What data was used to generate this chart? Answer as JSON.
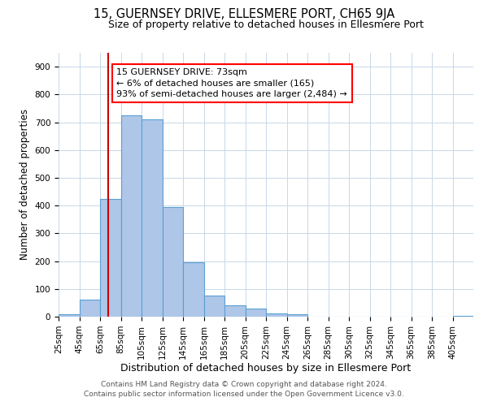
{
  "title": "15, GUERNSEY DRIVE, ELLESMERE PORT, CH65 9JA",
  "subtitle": "Size of property relative to detached houses in Ellesmere Port",
  "xlabel": "Distribution of detached houses by size in Ellesmere Port",
  "ylabel": "Number of detached properties",
  "bin_edges": [
    25,
    45,
    65,
    85,
    105,
    125,
    145,
    165,
    185,
    205,
    225,
    245,
    265,
    285,
    305,
    325,
    345,
    365,
    385,
    405,
    425
  ],
  "bar_heights": [
    8,
    60,
    425,
    725,
    710,
    395,
    195,
    75,
    40,
    30,
    12,
    10,
    0,
    0,
    0,
    0,
    0,
    0,
    0,
    3
  ],
  "bar_color": "#aec6e8",
  "bar_edge_color": "#5a9fd4",
  "bar_linewidth": 0.8,
  "vline_x": 73,
  "vline_color": "#cc0000",
  "annotation_line1": "15 GUERNSEY DRIVE: 73sqm",
  "annotation_line2": "← 6% of detached houses are smaller (165)",
  "annotation_line3": "93% of semi-detached houses are larger (2,484) →",
  "ylim": [
    0,
    950
  ],
  "yticks": [
    0,
    100,
    200,
    300,
    400,
    500,
    600,
    700,
    800,
    900
  ],
  "background_color": "#ffffff",
  "grid_color": "#c8d8e8",
  "footer_line1": "Contains HM Land Registry data © Crown copyright and database right 2024.",
  "footer_line2": "Contains public sector information licensed under the Open Government Licence v3.0.",
  "title_fontsize": 10.5,
  "subtitle_fontsize": 9,
  "xlabel_fontsize": 9,
  "ylabel_fontsize": 8.5,
  "tick_fontsize": 7.5,
  "annotation_fontsize": 8,
  "footer_fontsize": 6.5
}
